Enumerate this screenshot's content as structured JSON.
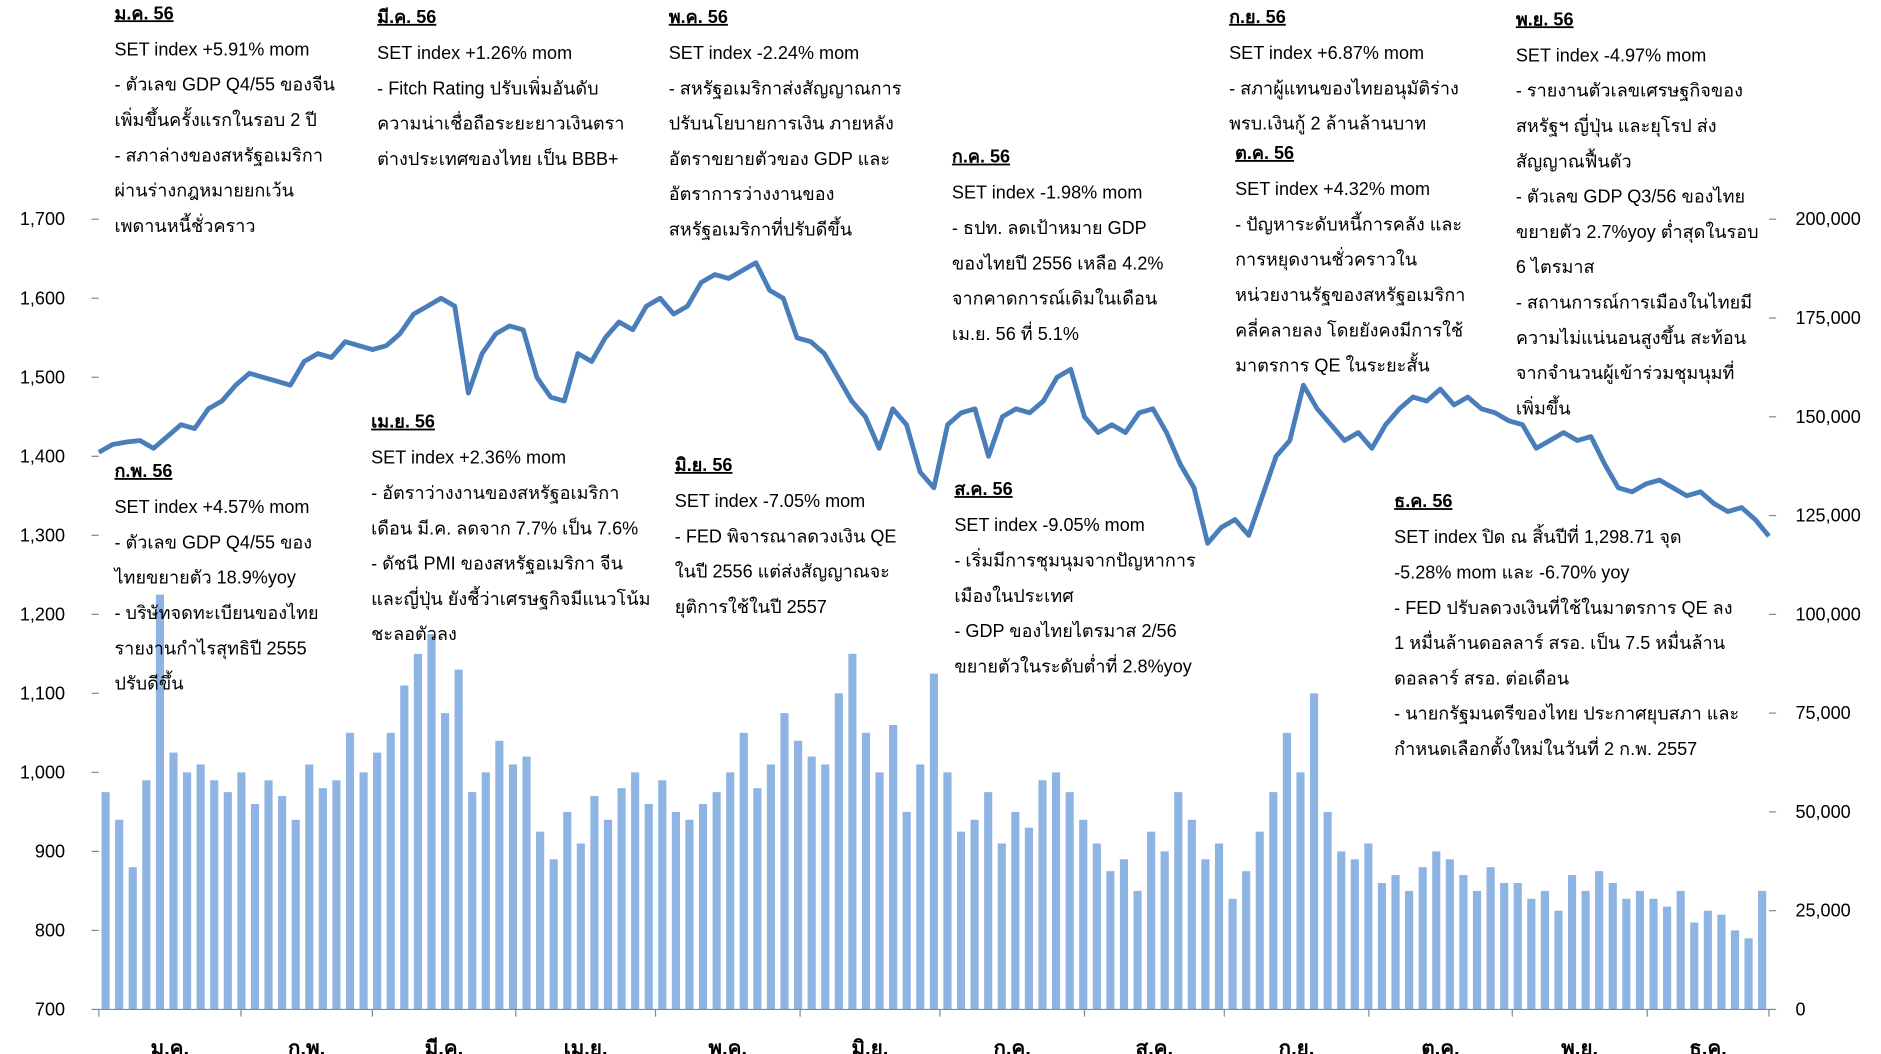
{
  "chart_data": {
    "type": "line-bar",
    "months": [
      "ม.ค.",
      "ก.พ.",
      "มี.ค.",
      "เม.ย.",
      "พ.ค.",
      "มิ.ย.",
      "ก.ค.",
      "ส.ค.",
      "ก.ย.",
      "ต.ค.",
      "พ.ย.",
      "ธ.ค."
    ],
    "ylim": [
      700,
      1700
    ],
    "yticks": [
      {
        "value": 700,
        "label": "700"
      },
      {
        "value": 800,
        "label": "800"
      },
      {
        "value": 900,
        "label": "900"
      },
      {
        "value": 1000,
        "label": "1,000"
      },
      {
        "value": 1100,
        "label": "1,100"
      },
      {
        "value": 1200,
        "label": "1,200"
      },
      {
        "value": 1300,
        "label": "1,300"
      },
      {
        "value": 1400,
        "label": "1,400"
      },
      {
        "value": 1500,
        "label": "1,500"
      },
      {
        "value": 1600,
        "label": "1,600"
      },
      {
        "value": 1700,
        "label": "1,700"
      }
    ],
    "y2lim": [
      0,
      200000
    ],
    "y2ticks": [
      {
        "value": 0,
        "label": "0"
      },
      {
        "value": 25000,
        "label": "25,000"
      },
      {
        "value": 50000,
        "label": "50,000"
      },
      {
        "value": 75000,
        "label": "75,000"
      },
      {
        "value": 100000,
        "label": "100,000"
      },
      {
        "value": 125000,
        "label": "125,000"
      },
      {
        "value": 150000,
        "label": "150,000"
      },
      {
        "value": 175000,
        "label": "175,000"
      },
      {
        "value": 200000,
        "label": "200,000"
      }
    ],
    "series": [
      {
        "type": "bar",
        "axis": "y2",
        "color": "#8eb4e3",
        "values": [
          55000,
          48000,
          36000,
          58000,
          105000,
          65000,
          60000,
          62000,
          58000,
          55000,
          60000,
          52000,
          58000,
          54000,
          48000,
          62000,
          56000,
          58000,
          70000,
          60000,
          65000,
          70000,
          82000,
          90000,
          95000,
          75000,
          86000,
          55000,
          60000,
          68000,
          62000,
          64000,
          45000,
          38000,
          50000,
          42000,
          54000,
          48000,
          56000,
          60000,
          52000,
          58000,
          50000,
          48000,
          52000,
          55000,
          60000,
          70000,
          56000,
          62000,
          75000,
          68000,
          64000,
          62000,
          80000,
          90000,
          70000,
          60000,
          72000,
          50000,
          62000,
          85000,
          60000,
          45000,
          48000,
          55000,
          42000,
          50000,
          46000,
          58000,
          60000,
          55000,
          48000,
          42000,
          35000,
          38000,
          30000,
          45000,
          40000,
          55000,
          48000,
          38000,
          42000,
          28000,
          35000,
          45000,
          55000,
          70000,
          60000,
          80000,
          50000,
          40000,
          38000,
          42000,
          32000,
          34000,
          30000,
          36000,
          40000,
          38000,
          34000,
          30000,
          36000,
          32000,
          32000,
          28000,
          30000,
          25000,
          34000,
          30000,
          35000,
          32000,
          28000,
          30000,
          28000,
          26000,
          30000,
          22000,
          25000,
          24000,
          20000,
          18000,
          30000
        ]
      },
      {
        "type": "line",
        "color": "#4a7ebb",
        "values": [
          1405,
          1415,
          1418,
          1420,
          1410,
          1425,
          1440,
          1435,
          1460,
          1470,
          1490,
          1505,
          1500,
          1495,
          1490,
          1520,
          1530,
          1525,
          1545,
          1540,
          1535,
          1540,
          1555,
          1580,
          1590,
          1600,
          1590,
          1480,
          1530,
          1555,
          1565,
          1560,
          1500,
          1475,
          1470,
          1530,
          1520,
          1550,
          1570,
          1560,
          1590,
          1600,
          1580,
          1590,
          1620,
          1630,
          1625,
          1635,
          1645,
          1610,
          1600,
          1550,
          1545,
          1530,
          1500,
          1470,
          1450,
          1410,
          1460,
          1440,
          1380,
          1360,
          1440,
          1455,
          1460,
          1400,
          1450,
          1460,
          1455,
          1470,
          1500,
          1510,
          1450,
          1430,
          1440,
          1430,
          1455,
          1460,
          1430,
          1390,
          1360,
          1290,
          1310,
          1320,
          1300,
          1350,
          1400,
          1420,
          1490,
          1460,
          1440,
          1420,
          1430,
          1410,
          1440,
          1460,
          1475,
          1470,
          1485,
          1465,
          1475,
          1460,
          1455,
          1445,
          1440,
          1410,
          1420,
          1430,
          1420,
          1425,
          1390,
          1360,
          1355,
          1365,
          1370,
          1360,
          1350,
          1355,
          1340,
          1330,
          1335,
          1320,
          1299
        ]
      }
    ],
    "annotations": [
      {
        "title": "ม.ค. 56",
        "lines": [
          "SET index +5.91% mom",
          "- ตัวเลข GDP Q4/55 ของจีน",
          "เพิ่มขึ้นครั้งแรกในรอบ 2 ปี",
          "- สภาล่างของสหรัฐอเมริกา",
          "ผ่านร่างกฎหมายยกเว้น",
          "เพดานหนี้ชั่วคราว"
        ]
      },
      {
        "title": "มี.ค. 56",
        "lines": [
          "SET index +1.26% mom",
          "- Fitch Rating ปรับเพิ่มอันดับ",
          "ความน่าเชื่อถือระยะยาวเงินตรา",
          "ต่างประเทศของไทย เป็น BBB+"
        ]
      },
      {
        "title": "พ.ค. 56",
        "lines": [
          "SET index -2.24% mom",
          "-  สหรัฐอเมริกาส่งสัญญาณการ",
          "ปรับนโยบายการเงิน ภายหลัง",
          "อัตราขยายตัวของ GDP และ",
          "อัตราการว่างงานของ",
          "สหรัฐอเมริกาที่ปรับดีขึ้น"
        ]
      },
      {
        "title": "ก.ค. 56",
        "lines": [
          "SET index -1.98% mom",
          "- ธปท. ลดเป้าหมาย GDP",
          "ของไทยปี 2556 เหลือ 4.2%",
          "จากคาดการณ์เดิมในเดือน",
          "เม.ย. 56 ที่ 5.1%"
        ]
      },
      {
        "title": "ก.ย. 56",
        "lines": [
          "SET index +6.87% mom",
          "- สภาผู้แทนของไทยอนุมัติร่าง",
          "พรบ.เงินกู้ 2 ล้านล้านบาท"
        ]
      },
      {
        "title": "ต.ค. 56",
        "lines": [
          "SET index +4.32% mom",
          "- ปัญหาระดับหนี้การคลัง และ",
          "การหยุดงานชั่วคราวใน",
          "หน่วยงานรัฐของสหรัฐอเมริกา",
          "คลี่คลายลง โดยยังคงมีการใช้",
          "มาตรการ QE ในระยะสั้น"
        ]
      },
      {
        "title": "พ.ย. 56",
        "lines": [
          "SET index -4.97% mom",
          "- รายงานตัวเลขเศรษฐกิจของ",
          "สหรัฐฯ ญี่ปุ่น และยุโรป ส่ง",
          "สัญญาณฟื้นตัว",
          "- ตัวเลข GDP Q3/56 ของไทย",
          "ขยายตัว 2.7%yoy ต่ำสุดในรอบ",
          "6 ไตรมาส",
          "- สถานการณ์การเมืองในไทยมี",
          "ความไม่แน่นอนสูงขึ้น สะท้อน",
          "จากจำนวนผู้เข้าร่วมชุมนุมที่",
          "เพิ่มขึ้น"
        ]
      },
      {
        "title": "ก.พ. 56",
        "lines": [
          "SET index +4.57% mom",
          "- ตัวเลข GDP Q4/55 ของ",
          "ไทยขยายตัว 18.9%yoy",
          "- บริษัทจดทะเบียนของไทย",
          "รายงานกำไรสุทธิปี 2555",
          "ปรับดีขึ้น"
        ]
      },
      {
        "title": "เม.ย. 56",
        "lines": [
          "SET index +2.36% mom",
          "- อัตราว่างงานของสหรัฐอเมริกา",
          "เดือน มี.ค. ลดจาก 7.7% เป็น 7.6%",
          "- ดัชนี PMI ของสหรัฐอเมริกา จีน",
          "และญี่ปุ่น ยังชี้ว่าเศรษฐกิจมีแนวโน้ม",
          "ชะลอตัวลง"
        ]
      },
      {
        "title": "มิ.ย. 56",
        "lines": [
          "SET index -7.05% mom",
          "- FED พิจารณาลดวงเงิน QE",
          "ในปี 2556 แต่ส่งสัญญาณจะ",
          "ยุติการใช้ในปี 2557"
        ]
      },
      {
        "title": "ส.ค. 56",
        "lines": [
          "SET index -9.05% mom",
          "- เริ่มมีการชุมนุมจากปัญหาการ",
          "เมืองในประเทศ",
          "- GDP ของไทยไตรมาส 2/56",
          "ขยายตัวในระดับต่ำที่ 2.8%yoy"
        ]
      },
      {
        "title": "ธ.ค. 56",
        "lines": [
          "SET index ปิด ณ สิ้นปีที่ 1,298.71 จุด",
          "-5.28% mom และ -6.70% yoy",
          "- FED ปรับลดวงเงินที่ใช้ในมาตรการ QE ลง",
          "1 หมื่นล้านดอลลาร์ สรอ. เป็น 7.5 หมื่นล้าน",
          "ดอลลาร์ สรอ. ต่อเดือน",
          "- นายกรัฐมนตรีของไทย ประกาศยุบสภา และ",
          "กำหนดเลือกตั้งใหม่ในวันที่ 2 ก.พ. 2557"
        ]
      }
    ]
  }
}
